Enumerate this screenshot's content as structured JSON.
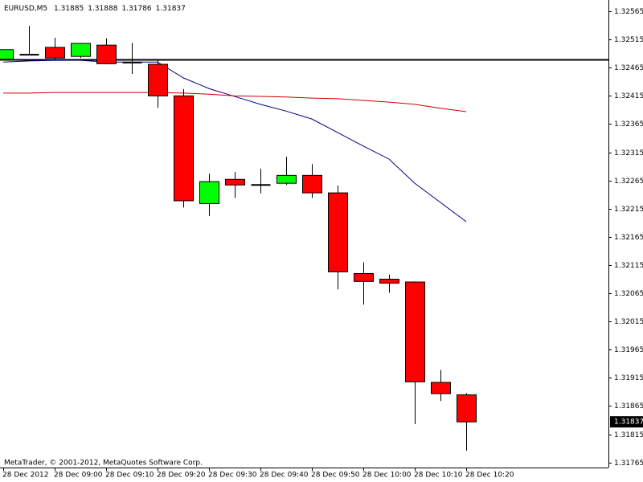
{
  "chart_data": {
    "type": "candlestick",
    "symbol": "EURUSD,M5",
    "footer": "MetaTrader, © 2001-2012, MetaQuotes Software Corp.",
    "categories": [
      "28 Dec 2012",
      null,
      "28 Dec 09:00",
      null,
      "28 Dec 09:10",
      null,
      "28 Dec 09:20",
      null,
      "28 Dec 09:30",
      null,
      "28 Dec 09:40",
      null,
      "28 Dec 09:50",
      null,
      "28 Dec 10:00",
      null,
      "28 Dec 10:10",
      null,
      "28 Dec 10:20"
    ],
    "open": [
      1.3248,
      1.32488,
      1.32501,
      1.32485,
      1.32505,
      1.32474,
      1.32471,
      1.32415,
      1.32224,
      1.32267,
      1.32257,
      1.3226,
      1.32274,
      1.32243,
      1.321,
      1.3209,
      1.32085,
      1.31907,
      1.31885
    ],
    "high": [
      1.32497,
      1.32539,
      1.32518,
      1.32509,
      1.32517,
      1.32509,
      1.32478,
      1.32427,
      1.32277,
      1.3228,
      1.32286,
      1.32307,
      1.32294,
      1.32256,
      1.3212,
      1.32098,
      1.32086,
      1.31929,
      1.31888
    ],
    "low": [
      1.32478,
      1.32488,
      1.32478,
      1.32482,
      1.32471,
      1.32454,
      1.32394,
      1.32217,
      1.32202,
      1.32234,
      1.32242,
      1.32257,
      1.32234,
      1.32072,
      1.32045,
      1.32066,
      1.31833,
      1.31874,
      1.31786
    ],
    "close": [
      1.32497,
      1.32488,
      1.32482,
      1.32508,
      1.32472,
      1.32474,
      1.32415,
      1.32229,
      1.32263,
      1.32257,
      1.32257,
      1.32274,
      1.32243,
      1.32103,
      1.32086,
      1.32083,
      1.31908,
      1.31887,
      1.31837
    ],
    "up_color": "#00ff00",
    "down_color": "#ff0000",
    "lines": [
      {
        "color": "#00007f",
        "values": [
          1.32475,
          1.32477,
          1.32478,
          1.32478,
          1.32475,
          1.32475,
          1.32475,
          1.32447,
          1.32428,
          1.32414,
          1.324,
          1.32388,
          1.32374,
          1.3235,
          1.32326,
          1.32303,
          1.3226,
          1.32226,
          1.32192
        ]
      },
      {
        "color": "#cc0000",
        "values": [
          1.3242,
          1.3242,
          1.32421,
          1.32421,
          1.32421,
          1.32421,
          1.32421,
          1.3242,
          1.32418,
          1.32415,
          1.32414,
          1.32413,
          1.32411,
          1.3241,
          1.32407,
          1.32404,
          1.324,
          1.32393,
          1.32387
        ]
      }
    ],
    "level": 1.3248,
    "ylim": [
      1.31756,
      1.32585
    ],
    "yticks": [
      1.32565,
      1.32515,
      1.32465,
      1.32415,
      1.32365,
      1.32315,
      1.32265,
      1.32215,
      1.32165,
      1.32115,
      1.32065,
      1.32015,
      1.31965,
      1.31915,
      1.31865,
      1.31815,
      1.31765
    ]
  }
}
